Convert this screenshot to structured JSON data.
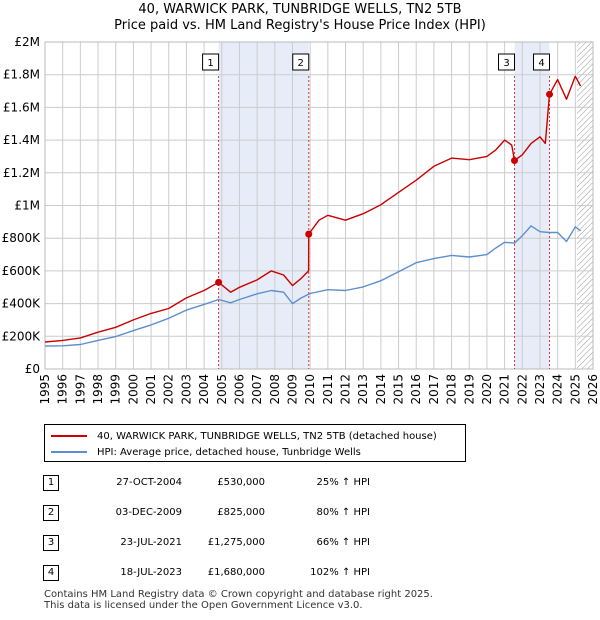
{
  "header": {
    "title_line1": "40, WARWICK PARK, TUNBRIDGE WELLS, TN2 5TB",
    "title_line2": "Price paid vs. HM Land Registry's House Price Index (HPI)"
  },
  "colors": {
    "property": "#cc0000",
    "hpi": "#5b8fcf",
    "shade": "#e6edf8",
    "grid": "#cccccc",
    "vline": "#dd3333"
  },
  "chart_data": {
    "type": "line",
    "title": "Price paid vs. HM Land Registry's House Price Index (HPI)",
    "xlim": [
      1995,
      2026
    ],
    "ylim": [
      0,
      2000000
    ],
    "x_ticks": [
      "1995",
      "1996",
      "1997",
      "1998",
      "1999",
      "2000",
      "2001",
      "2002",
      "2003",
      "2004",
      "2005",
      "2006",
      "2007",
      "2008",
      "2009",
      "2010",
      "2011",
      "2012",
      "2013",
      "2014",
      "2015",
      "2016",
      "2017",
      "2018",
      "2019",
      "2020",
      "2021",
      "2022",
      "2023",
      "2024",
      "2025",
      "2026"
    ],
    "y_ticks": [
      {
        "value": 0,
        "label": "£0"
      },
      {
        "value": 200000,
        "label": "£200K"
      },
      {
        "value": 400000,
        "label": "£400K"
      },
      {
        "value": 600000,
        "label": "£600K"
      },
      {
        "value": 800000,
        "label": "£800K"
      },
      {
        "value": 1000000,
        "label": "£1M"
      },
      {
        "value": 1200000,
        "label": "£1.2M"
      },
      {
        "value": 1400000,
        "label": "£1.4M"
      },
      {
        "value": 1600000,
        "label": "£1.6M"
      },
      {
        "value": 1800000,
        "label": "£1.8M"
      },
      {
        "value": 2000000,
        "label": "£2M"
      }
    ],
    "shaded_ranges": [
      [
        2004.82,
        2009.92
      ],
      [
        2021.56,
        2023.54
      ]
    ],
    "hatched_from": 2025.1,
    "series": [
      {
        "name": "40, WARWICK PARK, TUNBRIDGE WELLS, TN2 5TB (detached house)",
        "color": "#cc0000",
        "x": [
          1995,
          1996,
          1997,
          1998,
          1999,
          2000,
          2001,
          2002,
          2003,
          2004,
          2004.82,
          2005.5,
          2006,
          2007,
          2007.8,
          2008.5,
          2009,
          2009.5,
          2009.91,
          2009.92,
          2010.5,
          2011,
          2012,
          2013,
          2014,
          2015,
          2016,
          2017,
          2018,
          2019,
          2020,
          2020.5,
          2021,
          2021.4,
          2021.56,
          2022,
          2022.5,
          2023,
          2023.3,
          2023.54,
          2024,
          2024.5,
          2025,
          2025.3
        ],
        "y": [
          165000,
          175000,
          190000,
          225000,
          255000,
          300000,
          340000,
          370000,
          435000,
          480000,
          530000,
          470000,
          500000,
          545000,
          600000,
          575000,
          510000,
          555000,
          600000,
          825000,
          910000,
          940000,
          910000,
          950000,
          1005000,
          1080000,
          1155000,
          1240000,
          1290000,
          1280000,
          1300000,
          1340000,
          1400000,
          1370000,
          1275000,
          1310000,
          1380000,
          1420000,
          1380000,
          1680000,
          1770000,
          1650000,
          1790000,
          1730000
        ]
      },
      {
        "name": "HPI: Average price, detached house, Tunbridge Wells",
        "color": "#5b8fcf",
        "x": [
          1995,
          1996,
          1997,
          1998,
          1999,
          2000,
          2001,
          2002,
          2003,
          2004,
          2004.82,
          2005.5,
          2006,
          2007,
          2007.8,
          2008.5,
          2009,
          2009.5,
          2010,
          2011,
          2012,
          2013,
          2014,
          2015,
          2016,
          2017,
          2018,
          2019,
          2020,
          2020.5,
          2021,
          2021.56,
          2022,
          2022.5,
          2023,
          2023.54,
          2024,
          2024.5,
          2025,
          2025.3
        ],
        "y": [
          140000,
          142000,
          150000,
          175000,
          198000,
          235000,
          270000,
          310000,
          360000,
          395000,
          425000,
          405000,
          425000,
          460000,
          480000,
          470000,
          400000,
          435000,
          462000,
          485000,
          480000,
          502000,
          540000,
          595000,
          650000,
          675000,
          695000,
          685000,
          700000,
          740000,
          775000,
          770000,
          815000,
          875000,
          840000,
          835000,
          835000,
          780000,
          870000,
          845000
        ]
      }
    ],
    "sale_markers": [
      {
        "label": "1",
        "x": 2004.82,
        "y": 530000
      },
      {
        "label": "2",
        "x": 2009.92,
        "y": 825000
      },
      {
        "label": "3",
        "x": 2021.56,
        "y": 1275000
      },
      {
        "label": "4",
        "x": 2023.54,
        "y": 1680000
      }
    ]
  },
  "legend": {
    "items": [
      {
        "label": "40, WARWICK PARK, TUNBRIDGE WELLS, TN2 5TB (detached house)"
      },
      {
        "label": "HPI: Average price, detached house, Tunbridge Wells"
      }
    ]
  },
  "sales": [
    {
      "num": "1",
      "date": "27-OCT-2004",
      "price": "£530,000",
      "hpi": "25% ↑ HPI"
    },
    {
      "num": "2",
      "date": "03-DEC-2009",
      "price": "£825,000",
      "hpi": "80% ↑ HPI"
    },
    {
      "num": "3",
      "date": "23-JUL-2021",
      "price": "£1,275,000",
      "hpi": "66% ↑ HPI"
    },
    {
      "num": "4",
      "date": "18-JUL-2023",
      "price": "£1,680,000",
      "hpi": "102% ↑ HPI"
    }
  ],
  "footer": {
    "line1": "Contains HM Land Registry data © Crown copyright and database right 2025.",
    "line2": "This data is licensed under the Open Government Licence v3.0."
  }
}
